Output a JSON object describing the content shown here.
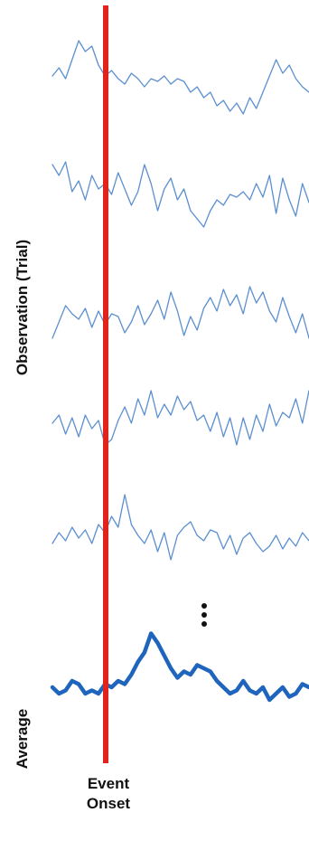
{
  "labels": {
    "y_axis": "Observation (Trial)",
    "average": "Average",
    "event_line1": "Event",
    "event_line2": "Onset"
  },
  "colors": {
    "trace": "#5b8fd0",
    "average": "#1f64bd",
    "event_line": "#e0231b",
    "text": "#111111"
  },
  "ellipsis": "vertical-ellipsis",
  "chart_data": {
    "type": "line",
    "x_range": [
      0,
      1
    ],
    "event_onset_x": 0.2,
    "y_range": [
      -1,
      1
    ],
    "series": [
      {
        "values": [
          0.1,
          0.25,
          0.05,
          0.4,
          0.75,
          0.55,
          0.65,
          0.3,
          0.1,
          0.2,
          0.05,
          -0.05,
          0.15,
          0.05,
          -0.1,
          0.05,
          0.0,
          0.1,
          -0.05,
          0.05,
          0.0,
          -0.2,
          -0.1,
          -0.3,
          -0.2,
          -0.45,
          -0.35,
          -0.55,
          -0.4,
          -0.6,
          -0.3,
          -0.5,
          -0.2,
          0.1,
          0.4,
          0.15,
          0.3,
          0.05,
          -0.1,
          -0.2
        ]
      },
      {
        "values": [
          0.55,
          0.35,
          0.6,
          0.05,
          0.25,
          -0.1,
          0.35,
          0.1,
          0.2,
          0.0,
          0.4,
          0.1,
          -0.2,
          0.05,
          0.55,
          0.2,
          -0.3,
          0.1,
          0.3,
          -0.1,
          0.1,
          -0.3,
          -0.45,
          -0.6,
          -0.3,
          -0.1,
          -0.2,
          0.0,
          -0.05,
          0.05,
          -0.1,
          0.2,
          -0.05,
          0.35,
          -0.35,
          0.3,
          -0.1,
          -0.4,
          0.2,
          -0.15
        ]
      },
      {
        "values": [
          -0.4,
          -0.1,
          0.2,
          0.05,
          -0.05,
          0.15,
          -0.2,
          0.1,
          -0.15,
          0.05,
          0.0,
          -0.3,
          -0.1,
          0.2,
          -0.15,
          0.05,
          0.3,
          -0.05,
          0.45,
          0.1,
          -0.35,
          0.0,
          -0.25,
          0.15,
          0.35,
          0.1,
          0.5,
          0.2,
          0.4,
          0.05,
          0.55,
          0.25,
          0.45,
          0.1,
          -0.1,
          0.35,
          0.0,
          -0.3,
          0.05,
          -0.4
        ]
      },
      {
        "values": [
          -0.05,
          0.1,
          -0.25,
          0.05,
          -0.3,
          0.1,
          -0.15,
          0.0,
          -0.45,
          -0.35,
          0.0,
          0.25,
          -0.05,
          0.4,
          0.1,
          0.55,
          0.05,
          0.3,
          0.1,
          0.45,
          0.2,
          0.35,
          0.0,
          0.1,
          -0.2,
          0.15,
          -0.3,
          0.05,
          -0.45,
          0.05,
          -0.35,
          0.1,
          -0.2,
          0.3,
          -0.1,
          0.15,
          0.05,
          0.4,
          -0.05,
          0.55
        ]
      },
      {
        "values": [
          -0.1,
          0.1,
          -0.05,
          0.2,
          0.0,
          0.15,
          -0.1,
          0.25,
          0.1,
          0.4,
          0.2,
          0.8,
          0.25,
          0.05,
          -0.1,
          0.15,
          -0.25,
          0.1,
          -0.4,
          0.05,
          0.2,
          0.3,
          0.05,
          -0.05,
          0.15,
          0.1,
          -0.2,
          0.05,
          -0.3,
          0.0,
          0.1,
          -0.1,
          -0.25,
          -0.15,
          0.05,
          -0.2,
          0.0,
          -0.15,
          0.1,
          -0.05
        ]
      },
      {
        "values": [
          0.0,
          -0.1,
          -0.05,
          0.1,
          0.05,
          -0.1,
          -0.05,
          -0.1,
          0.05,
          0.0,
          0.1,
          0.05,
          0.2,
          0.4,
          0.55,
          0.85,
          0.7,
          0.5,
          0.3,
          0.15,
          0.25,
          0.2,
          0.35,
          0.3,
          0.25,
          0.1,
          0.0,
          -0.1,
          -0.05,
          0.1,
          -0.05,
          -0.1,
          0.0,
          -0.2,
          -0.1,
          0.0,
          -0.15,
          -0.1,
          0.05,
          0.0
        ]
      }
    ]
  }
}
